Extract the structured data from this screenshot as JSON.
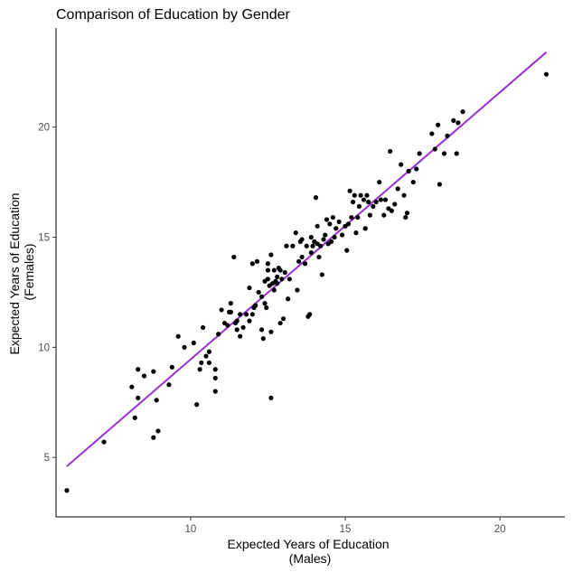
{
  "chart_data": {
    "type": "scatter",
    "title": "Comparison of Education by Gender",
    "xlabel_lines": [
      "Expected Years of Education",
      "(Males)"
    ],
    "ylabel_lines": [
      "Expected Years of Education",
      "(Females)"
    ],
    "xlim": [
      5.65,
      22.1
    ],
    "ylim": [
      2.3,
      24.5
    ],
    "x_ticks": [
      10,
      15,
      20
    ],
    "y_ticks": [
      5,
      10,
      15,
      20
    ],
    "grid": false,
    "trend_line": {
      "x": [
        6.0,
        21.5
      ],
      "y": [
        4.6,
        23.4
      ],
      "color": "#9b30d9"
    },
    "point_color": "#000000",
    "points": [
      [
        6.0,
        3.5
      ],
      [
        7.2,
        5.7
      ],
      [
        8.1,
        8.2
      ],
      [
        8.2,
        6.8
      ],
      [
        8.3,
        7.7
      ],
      [
        8.3,
        9.0
      ],
      [
        8.5,
        8.7
      ],
      [
        8.8,
        8.9
      ],
      [
        8.8,
        5.9
      ],
      [
        8.9,
        7.6
      ],
      [
        8.95,
        6.2
      ],
      [
        9.3,
        8.3
      ],
      [
        9.4,
        9.1
      ],
      [
        9.6,
        10.5
      ],
      [
        9.8,
        10.0
      ],
      [
        10.1,
        10.2
      ],
      [
        10.2,
        7.4
      ],
      [
        10.3,
        9.0
      ],
      [
        10.35,
        9.3
      ],
      [
        10.4,
        10.9
      ],
      [
        10.5,
        9.6
      ],
      [
        10.6,
        9.8
      ],
      [
        10.6,
        9.3
      ],
      [
        10.8,
        8.6
      ],
      [
        10.8,
        8.0
      ],
      [
        10.9,
        10.6
      ],
      [
        10.8,
        9.0
      ],
      [
        11.0,
        11.7
      ],
      [
        11.1,
        11.1
      ],
      [
        11.2,
        11.0
      ],
      [
        11.25,
        11.6
      ],
      [
        11.3,
        12.0
      ],
      [
        11.3,
        11.6
      ],
      [
        11.4,
        14.1
      ],
      [
        11.45,
        11.1
      ],
      [
        11.5,
        10.8
      ],
      [
        11.5,
        11.2
      ],
      [
        11.6,
        11.5
      ],
      [
        11.6,
        10.5
      ],
      [
        11.7,
        10.9
      ],
      [
        11.8,
        11.5
      ],
      [
        11.9,
        12.7
      ],
      [
        11.9,
        11.2
      ],
      [
        12.0,
        13.8
      ],
      [
        12.0,
        11.5
      ],
      [
        12.05,
        11.8
      ],
      [
        12.1,
        11.9
      ],
      [
        12.15,
        13.9
      ],
      [
        12.2,
        12.5
      ],
      [
        12.3,
        10.8
      ],
      [
        12.3,
        12.3
      ],
      [
        12.35,
        10.4
      ],
      [
        12.4,
        13.0
      ],
      [
        12.4,
        12.0
      ],
      [
        12.45,
        11.8
      ],
      [
        12.5,
        13.8
      ],
      [
        12.5,
        13.1
      ],
      [
        12.5,
        13.5
      ],
      [
        12.55,
        12.8
      ],
      [
        12.6,
        7.7
      ],
      [
        12.6,
        14.2
      ],
      [
        12.6,
        10.7
      ],
      [
        12.65,
        12.9
      ],
      [
        12.7,
        12.6
      ],
      [
        12.7,
        13.5
      ],
      [
        12.75,
        13.0
      ],
      [
        12.8,
        13.2
      ],
      [
        12.8,
        12.9
      ],
      [
        12.85,
        13.6
      ],
      [
        12.9,
        13.5
      ],
      [
        12.9,
        11.1
      ],
      [
        12.95,
        13.1
      ],
      [
        13.0,
        11.3
      ],
      [
        13.05,
        13.4
      ],
      [
        13.1,
        14.6
      ],
      [
        13.15,
        12.2
      ],
      [
        13.2,
        13.1
      ],
      [
        13.3,
        14.6
      ],
      [
        13.4,
        15.2
      ],
      [
        13.45,
        12.6
      ],
      [
        13.5,
        13.9
      ],
      [
        13.55,
        14.8
      ],
      [
        13.6,
        14.9
      ],
      [
        13.6,
        14.1
      ],
      [
        13.7,
        13.8
      ],
      [
        13.75,
        14.6
      ],
      [
        13.8,
        11.4
      ],
      [
        13.85,
        11.5
      ],
      [
        13.9,
        15.0
      ],
      [
        13.9,
        14.3
      ],
      [
        13.95,
        14.6
      ],
      [
        14.0,
        14.8
      ],
      [
        14.05,
        16.8
      ],
      [
        14.1,
        15.5
      ],
      [
        14.1,
        14.7
      ],
      [
        14.15,
        14.1
      ],
      [
        14.2,
        14.6
      ],
      [
        14.25,
        13.3
      ],
      [
        14.3,
        14.9
      ],
      [
        14.35,
        15.1
      ],
      [
        14.4,
        15.8
      ],
      [
        14.45,
        14.7
      ],
      [
        14.5,
        15.6
      ],
      [
        14.55,
        14.8
      ],
      [
        14.6,
        15.9
      ],
      [
        14.65,
        15.0
      ],
      [
        14.7,
        15.4
      ],
      [
        14.8,
        15.7
      ],
      [
        14.9,
        15.1
      ],
      [
        15.0,
        15.5
      ],
      [
        15.05,
        14.4
      ],
      [
        15.1,
        15.6
      ],
      [
        15.15,
        17.1
      ],
      [
        15.2,
        15.9
      ],
      [
        15.25,
        16.6
      ],
      [
        15.3,
        16.9
      ],
      [
        15.35,
        15.2
      ],
      [
        15.4,
        15.9
      ],
      [
        15.45,
        16.4
      ],
      [
        15.5,
        16.9
      ],
      [
        15.6,
        16.7
      ],
      [
        15.65,
        15.4
      ],
      [
        15.7,
        16.9
      ],
      [
        15.75,
        16.6
      ],
      [
        15.8,
        16.0
      ],
      [
        15.9,
        16.4
      ],
      [
        16.0,
        16.6
      ],
      [
        16.1,
        17.5
      ],
      [
        16.15,
        16.7
      ],
      [
        16.25,
        16.0
      ],
      [
        16.3,
        16.7
      ],
      [
        16.4,
        16.3
      ],
      [
        16.45,
        18.9
      ],
      [
        16.5,
        16.2
      ],
      [
        16.6,
        16.5
      ],
      [
        16.7,
        17.2
      ],
      [
        16.8,
        18.3
      ],
      [
        16.9,
        16.9
      ],
      [
        16.95,
        15.9
      ],
      [
        17.0,
        16.1
      ],
      [
        17.05,
        18.0
      ],
      [
        17.2,
        17.5
      ],
      [
        17.3,
        18.1
      ],
      [
        17.4,
        18.8
      ],
      [
        17.8,
        19.7
      ],
      [
        17.9,
        19.0
      ],
      [
        18.0,
        20.1
      ],
      [
        18.05,
        17.4
      ],
      [
        18.2,
        18.8
      ],
      [
        18.3,
        19.6
      ],
      [
        18.5,
        20.3
      ],
      [
        18.6,
        18.8
      ],
      [
        18.65,
        20.2
      ],
      [
        18.8,
        20.7
      ],
      [
        21.5,
        22.4
      ]
    ]
  }
}
